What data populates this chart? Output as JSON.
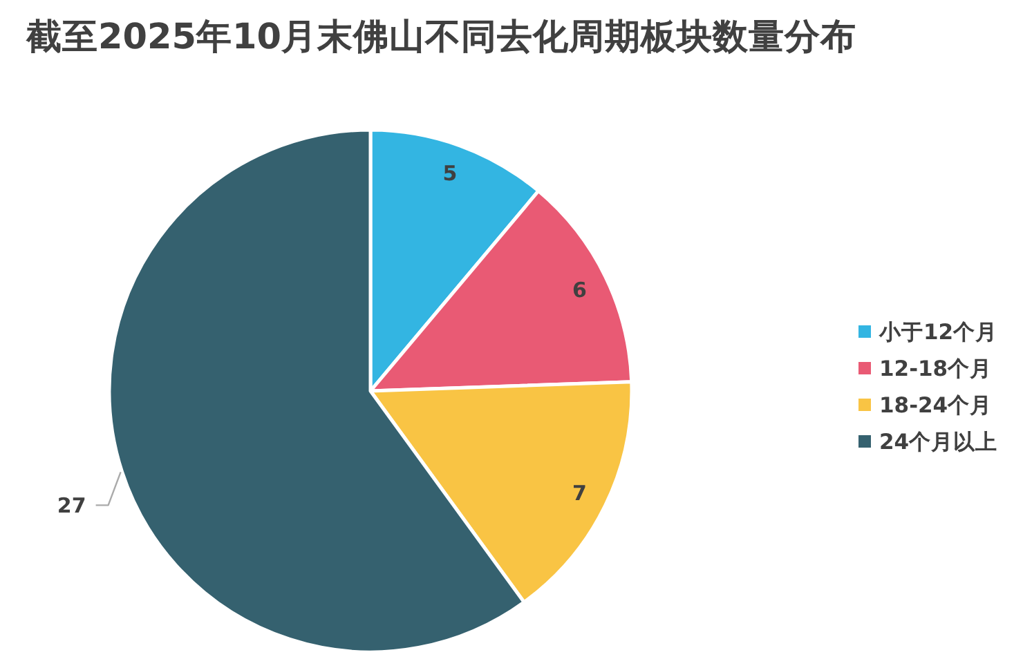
{
  "chart_data": {
    "type": "pie",
    "title": "截至2025年10月末佛山不同去化周期板块数量分布",
    "categories": [
      "小于12个月",
      "12-18个月",
      "18-24个月",
      "24个月以上"
    ],
    "values": [
      5,
      6,
      7,
      27
    ],
    "colors": [
      "#33b5e2",
      "#e95a74",
      "#f9c444",
      "#35616f"
    ],
    "data_labels": true,
    "legend": "right"
  }
}
